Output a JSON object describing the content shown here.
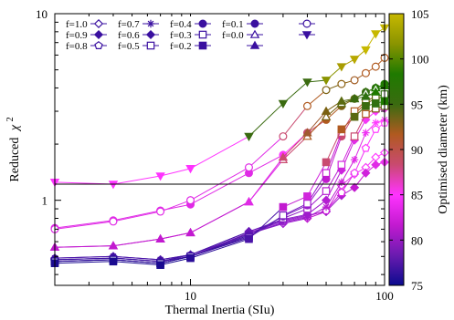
{
  "chart_data": {
    "type": "line",
    "xlabel": "Thermal Inertia (SIu)",
    "ylabel": "Reduced",
    "ylabel_symbol": "χ",
    "ylabel_sup": "2",
    "x_scale": "log",
    "y_scale": "log",
    "xlim": [
      2,
      100
    ],
    "ylim": [
      0.35,
      10
    ],
    "x_ticks": [
      {
        "v": 10,
        "label": "10"
      },
      {
        "v": 100,
        "label": "100"
      }
    ],
    "y_ticks": [
      {
        "v": 1,
        "label": "1"
      },
      {
        "v": 10,
        "label": "10"
      }
    ],
    "reference_line_y": 1.22,
    "grid": false,
    "legend_position": "top-left",
    "colorbar": {
      "label": "Optimised diameter (km)",
      "range": [
        75,
        105
      ],
      "ticks": [
        "75",
        "80",
        "85",
        "90",
        "95",
        "100",
        "105"
      ],
      "colormap": [
        "#0b0b8f",
        "#6a1bb0",
        "#c21ad0",
        "#ff33ff",
        "#c94a70",
        "#b05a20",
        "#3a6b10",
        "#1f7a00",
        "#8a9400",
        "#c7b800"
      ]
    },
    "x": [
      2,
      4,
      7,
      10,
      20,
      30,
      40,
      50,
      60,
      70,
      80,
      90,
      100
    ],
    "series": [
      {
        "name": "f=1.0",
        "marker": "diamond-open",
        "values": [
          0.48,
          0.49,
          0.47,
          0.5,
          0.66,
          0.75,
          0.8,
          0.87,
          1.2,
          1.38,
          1.5,
          1.7,
          1.8
        ],
        "colors": [
          "#5a1ab0",
          "#5a1ab0",
          "#5a1ab0",
          "#6a1bb0",
          "#8a1ac8",
          "#a01ad0",
          "#c21ad0",
          "#d624e0",
          "#e82eee",
          "#f236f6",
          "#f83af8",
          "#ff3cff",
          "#ff40ff"
        ]
      },
      {
        "name": "f=0.9",
        "marker": "diamond-filled",
        "values": [
          0.49,
          0.5,
          0.48,
          0.51,
          0.68,
          0.78,
          0.83,
          0.87,
          1.06,
          1.17,
          1.4,
          1.55,
          1.6
        ],
        "colors": [
          "#4a14a8",
          "#4a14a8",
          "#4a14a8",
          "#5a18b0",
          "#7a1cc0",
          "#8c1cc8",
          "#9a1ccc",
          "#a21ccc",
          "#b01cd0",
          "#c21ad0",
          "#d020dc",
          "#e02ae6",
          "#ec34f0"
        ]
      },
      {
        "name": "f=0.8",
        "marker": "pentagon-open",
        "values": [
          0.48,
          0.49,
          0.47,
          0.5,
          0.67,
          0.77,
          0.82,
          0.88,
          1.1,
          1.4,
          1.9,
          2.4,
          2.6
        ],
        "colors": [
          "#5a1ab0",
          "#5a1ab0",
          "#5a1ab0",
          "#6a1bb0",
          "#8a1ac8",
          "#a01ad0",
          "#b81cd0",
          "#c81ed8",
          "#dc28e4",
          "#ee34f2",
          "#ff3cff",
          "#ff42ff",
          "#ff48ff"
        ]
      },
      {
        "name": "f=0.7",
        "marker": "asterisk",
        "values": [
          0.49,
          0.5,
          0.48,
          0.51,
          0.66,
          0.76,
          0.81,
          0.92,
          1.25,
          1.65,
          2.3,
          2.6,
          2.7
        ],
        "colors": [
          "#4a14a8",
          "#4a14a8",
          "#4a14a8",
          "#5a18b0",
          "#7a1cc0",
          "#901cc8",
          "#a41ccc",
          "#b81cd0",
          "#cc20d8",
          "#e02ae6",
          "#f034f4",
          "#ff3cff",
          "#ff42ff"
        ]
      },
      {
        "name": "f=0.6",
        "marker": "diamond-filled",
        "values": [
          0.48,
          0.49,
          0.47,
          0.51,
          0.68,
          0.79,
          0.84,
          1.0,
          1.45,
          2.1,
          2.7,
          3.0,
          3.1
        ],
        "colors": [
          "#3a10a0",
          "#3a10a0",
          "#3a10a0",
          "#4a14a8",
          "#6a18b8",
          "#8a1cc4",
          "#9e1ccc",
          "#b41ed2",
          "#cc24dc",
          "#e22ee8",
          "#f438f6",
          "#ff3cff",
          "#ff40ff"
        ]
      },
      {
        "name": "f=0.5",
        "marker": "square-open",
        "values": [
          0.47,
          0.48,
          0.46,
          0.5,
          0.64,
          0.8,
          0.9,
          1.12,
          1.55,
          2.2,
          2.9,
          3.1,
          3.2
        ],
        "colors": [
          "#3a10a0",
          "#3a10a0",
          "#3a10a0",
          "#4a14a8",
          "#6a18b8",
          "#8a1cc4",
          "#a21ccc",
          "#b81ed2",
          "#d026dc",
          "#c94a70",
          "#b05a20",
          "#7a6010",
          "#5a6a10"
        ]
      },
      {
        "name": "f=0.4",
        "marker": "circle-filled",
        "values": [
          0.47,
          0.48,
          0.46,
          0.5,
          0.65,
          0.82,
          0.94,
          1.3,
          2.2,
          2.9,
          3.3,
          3.5,
          3.6
        ],
        "colors": [
          "#2a0c98",
          "#2a0c98",
          "#2a0c98",
          "#3a10a0",
          "#5a16b0",
          "#7a1cc0",
          "#9a1ccc",
          "#c21ad0",
          "#c94a70",
          "#b05a20",
          "#7a6010",
          "#5a6a10",
          "#3a6b10"
        ]
      },
      {
        "name": "f=0.3",
        "marker": "square-open",
        "values": [
          0.47,
          0.48,
          0.46,
          0.5,
          0.63,
          0.83,
          0.96,
          1.4,
          2.3,
          3.0,
          3.4,
          3.6,
          3.7
        ],
        "colors": [
          "#2a0c98",
          "#2a0c98",
          "#2a0c98",
          "#3a10a0",
          "#5a16b0",
          "#7a1cc0",
          "#9a1ccc",
          "#c21ad0",
          "#c94a70",
          "#b05a20",
          "#7a6010",
          "#5a6a10",
          "#2f7010"
        ]
      },
      {
        "name": "f=0.2",
        "marker": "square-filled",
        "values": [
          0.46,
          0.47,
          0.45,
          0.49,
          0.62,
          0.92,
          1.05,
          1.6,
          2.4,
          2.8,
          3.2,
          3.3,
          3.4
        ],
        "colors": [
          "#1a0a90",
          "#1a0a90",
          "#1a0a90",
          "#2a0c98",
          "#4a14a8",
          "#c21ad0",
          "#d026dc",
          "#c94a70",
          "#b05a20",
          "#5a6a10",
          "#3a6b10",
          "#2f7010",
          "#1f7a00"
        ]
      },
      {
        "name": "f=0.1",
        "marker": "circle-filled",
        "values": [
          0.71,
          0.78,
          0.88,
          0.95,
          1.4,
          1.75,
          2.3,
          2.7,
          3.2,
          3.5,
          3.8,
          4.0,
          4.2
        ],
        "colors": [
          "#e02ae6",
          "#e02ae6",
          "#e02ae6",
          "#e02ae6",
          "#e02ae6",
          "#ff33ff",
          "#c94a70",
          "#b05a20",
          "#7a6010",
          "#5a6a10",
          "#3a6b10",
          "#2f7010",
          "#1f7a00"
        ]
      },
      {
        "name": "f=0.0",
        "marker": "triangle-open",
        "values": [
          0.56,
          0.57,
          0.62,
          0.67,
          0.98,
          1.65,
          2.2,
          2.8,
          3.3,
          3.5,
          3.8,
          4.0,
          4.2
        ],
        "colors": [
          "#c21ad0",
          "#c21ad0",
          "#c21ad0",
          "#c21ad0",
          "#e02ae6",
          "#c94a70",
          "#b05a20",
          "#7a6010",
          "#5a6a10",
          "#3a6b10",
          "#2f7010",
          "#1f7a00",
          "#1f7a00"
        ]
      },
      {
        "name": "",
        "marker": "triangle-filled",
        "values": [
          0.56,
          0.57,
          0.62,
          0.67,
          0.98,
          1.7,
          2.3,
          3.0,
          3.4,
          3.5,
          3.6,
          3.8,
          4.1
        ],
        "colors": [
          "#c21ad0",
          "#c21ad0",
          "#c21ad0",
          "#c21ad0",
          "#e02ae6",
          "#c94a70",
          "#a05a30",
          "#7a6010",
          "#5a6a10",
          "#3a6b10",
          "#2f7010",
          "#1f7a00",
          "#1f7a00"
        ]
      },
      {
        "name": "",
        "marker": "circle-open",
        "values": [
          0.7,
          0.77,
          0.87,
          1.0,
          1.5,
          2.2,
          3.2,
          3.9,
          4.2,
          4.4,
          4.8,
          5.2,
          5.8
        ],
        "colors": [
          "#e02ae6",
          "#e02ae6",
          "#e02ae6",
          "#e02ae6",
          "#e02ae6",
          "#c94a70",
          "#b05a20",
          "#7a6010",
          "#8a6010",
          "#a05a20",
          "#b05a20",
          "#b05a20",
          "#b05a20"
        ]
      },
      {
        "name": "",
        "marker": "triangle-down-filled",
        "values": [
          1.25,
          1.22,
          1.35,
          1.48,
          2.2,
          3.3,
          4.3,
          4.4,
          5.2,
          5.7,
          6.4,
          7.8,
          8.4
        ],
        "colors": [
          "#ff33ff",
          "#ff33ff",
          "#ff33ff",
          "#ff33ff",
          "#3a6b10",
          "#3a6b10",
          "#3a6b10",
          "#8a9400",
          "#a89c00",
          "#b8a800",
          "#c7b800",
          "#c7b800",
          "#c7b800"
        ]
      }
    ],
    "legend": [
      {
        "label": "f=1.0",
        "marker": "diamond-open"
      },
      {
        "label": "f=0.9",
        "marker": "diamond-filled"
      },
      {
        "label": "f=0.8",
        "marker": "pentagon-open"
      },
      {
        "label": "f=0.7",
        "marker": "asterisk"
      },
      {
        "label": "f=0.6",
        "marker": "diamond-filled"
      },
      {
        "label": "f=0.5",
        "marker": "square-open"
      },
      {
        "label": "f=0.4",
        "marker": "circle-filled"
      },
      {
        "label": "f=0.3",
        "marker": "square-open"
      },
      {
        "label": "f=0.2",
        "marker": "square-filled"
      },
      {
        "label": "f=0.1",
        "marker": "circle-filled"
      },
      {
        "label": "f=0.0",
        "marker": "triangle-open"
      },
      {
        "label": "",
        "marker": "triangle-filled"
      },
      {
        "label": "",
        "marker": "circle-open"
      },
      {
        "label": "",
        "marker": "triangle-down-filled"
      }
    ]
  }
}
